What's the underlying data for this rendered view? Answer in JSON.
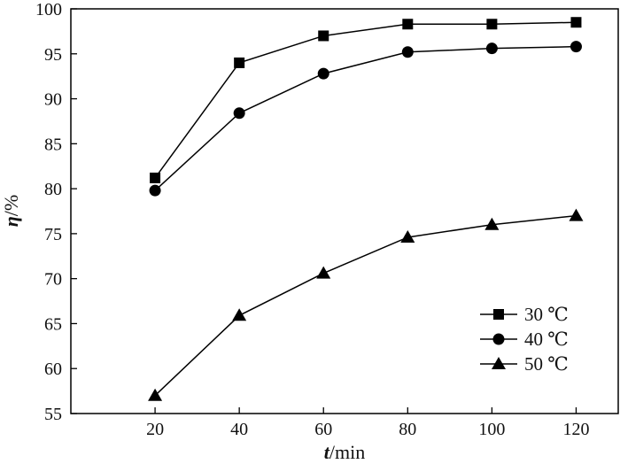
{
  "chart_data": {
    "type": "line",
    "x": [
      20,
      40,
      60,
      80,
      100,
      120
    ],
    "xlim": [
      0,
      130
    ],
    "ylim": [
      55,
      100
    ],
    "x_ticks": [
      20,
      40,
      60,
      80,
      100,
      120
    ],
    "y_ticks": [
      55,
      60,
      65,
      70,
      75,
      80,
      85,
      90,
      95,
      100
    ],
    "xlabel": {
      "var": "t",
      "unit": "/min"
    },
    "ylabel": {
      "var": "η",
      "unit": "/%"
    },
    "grid": false,
    "legend_position": "bottom-right",
    "series": [
      {
        "name": "30 ℃",
        "marker": "square",
        "values": [
          81.2,
          94.0,
          97.0,
          98.3,
          98.3,
          98.5
        ]
      },
      {
        "name": "40 ℃",
        "marker": "circle",
        "values": [
          79.8,
          88.4,
          92.8,
          95.2,
          95.6,
          95.8
        ]
      },
      {
        "name": "50 ℃",
        "marker": "triangle",
        "values": [
          57.0,
          65.9,
          70.6,
          74.6,
          76.0,
          77.0
        ]
      }
    ]
  }
}
